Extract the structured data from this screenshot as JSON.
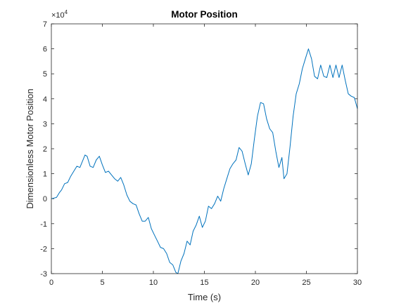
{
  "chart_data": {
    "type": "line",
    "title": "Motor Position",
    "xlabel": "Time (s)",
    "ylabel": "Dimensionless Motor Position",
    "y_exponent_label": "×10",
    "y_exponent": "4",
    "xlim": [
      0,
      30
    ],
    "ylim": [
      -30000,
      70000
    ],
    "grid": false,
    "x_ticks": [
      0,
      5,
      10,
      15,
      20,
      25,
      30
    ],
    "x_tick_labels": [
      "0",
      "5",
      "10",
      "15",
      "20",
      "25",
      "30"
    ],
    "y_ticks": [
      -30000,
      -20000,
      -10000,
      0,
      10000,
      20000,
      30000,
      40000,
      50000,
      60000,
      70000
    ],
    "y_tick_labels": [
      "-3",
      "-2",
      "-1",
      "0",
      "1",
      "2",
      "3",
      "4",
      "5",
      "6",
      "7"
    ],
    "line_color": "#0072BD",
    "series": [
      {
        "x": [
          0,
          0.5,
          0.8,
          1.0,
          1.3,
          1.6,
          1.9,
          2.2,
          2.5,
          2.8,
          3.0,
          3.3,
          3.5,
          3.8,
          4.1,
          4.4,
          4.7,
          5.0,
          5.3,
          5.6,
          5.9,
          6.2,
          6.5,
          6.8,
          7.1,
          7.4,
          7.7,
          8.0,
          8.3,
          8.6,
          8.9,
          9.2,
          9.5,
          9.8,
          10.1,
          10.4,
          10.7,
          11.0,
          11.3,
          11.6,
          11.9,
          12.2,
          12.4,
          12.7,
          13.0,
          13.3,
          13.6,
          13.9,
          14.2,
          14.5,
          14.8,
          15.1,
          15.4,
          15.7,
          16.0,
          16.3,
          16.6,
          16.9,
          17.2,
          17.5,
          17.8,
          18.1,
          18.4,
          18.7,
          19.0,
          19.3,
          19.6,
          19.9,
          20.2,
          20.5,
          20.8,
          21.1,
          21.4,
          21.7,
          22.0,
          22.3,
          22.6,
          22.8,
          23.1,
          23.4,
          23.7,
          24.0,
          24.3,
          24.6,
          24.9,
          25.2,
          25.5,
          25.8,
          26.1,
          26.4,
          26.7,
          27.0,
          27.3,
          27.6,
          27.9,
          28.2,
          28.5,
          28.8,
          29.1,
          29.4,
          29.7,
          30.0
        ],
        "y": [
          0,
          500,
          2500,
          3500,
          6000,
          6500,
          9000,
          11000,
          13000,
          12500,
          14500,
          17500,
          17000,
          13000,
          12500,
          15500,
          17000,
          13500,
          10500,
          11000,
          9500,
          8000,
          7000,
          8500,
          5500,
          1500,
          -1000,
          -2000,
          -2500,
          -6000,
          -9000,
          -9000,
          -7500,
          -12000,
          -14500,
          -17000,
          -19500,
          -20000,
          -22000,
          -25500,
          -26500,
          -29500,
          -30000,
          -25000,
          -22000,
          -17000,
          -18500,
          -13000,
          -10500,
          -7000,
          -11500,
          -9000,
          -3000,
          -4000,
          -2000,
          1000,
          -1000,
          4000,
          8000,
          12000,
          14000,
          15500,
          20500,
          19000,
          14000,
          9500,
          14000,
          24000,
          33000,
          38500,
          38000,
          32000,
          28000,
          26500,
          19000,
          12500,
          16500,
          8000,
          10000,
          21000,
          33000,
          42000,
          46000,
          52000,
          56000,
          60000,
          56000,
          49000,
          48000,
          53500,
          49000,
          48500,
          53500,
          48500,
          53500,
          48500,
          53500,
          47500,
          42000,
          41000,
          40500,
          36000
        ]
      }
    ]
  }
}
